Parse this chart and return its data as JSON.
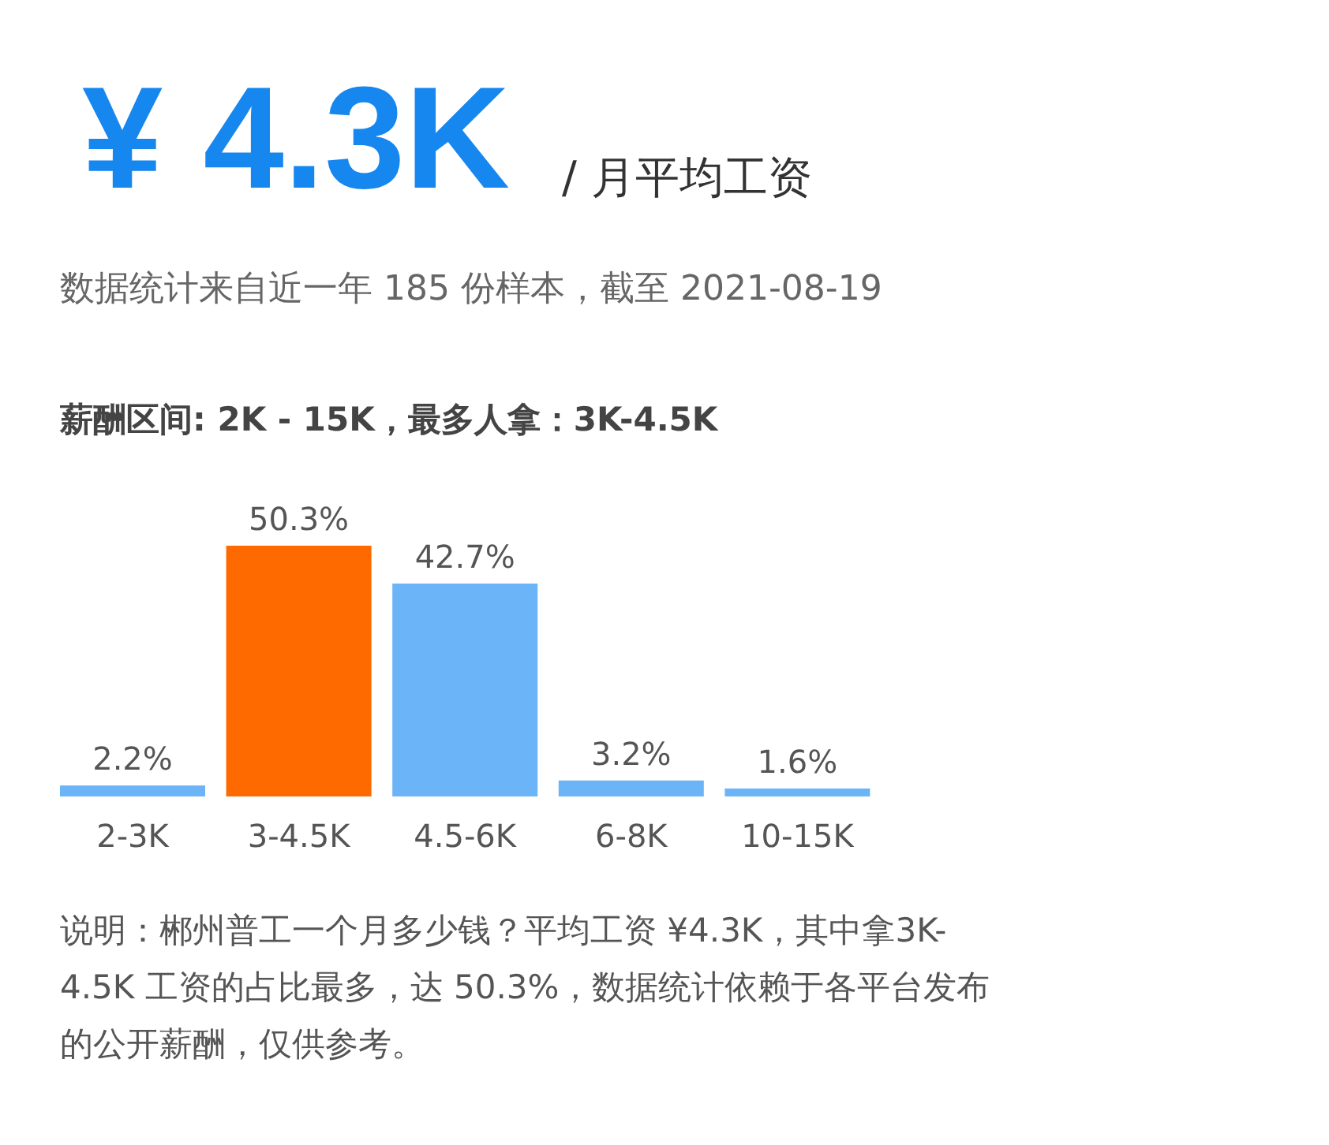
{
  "chart_data": {
    "type": "bar",
    "title": "¥ 4.3K",
    "subtitle": "/ 月平均工资",
    "annotations": [
      "数据统计来自近一年 185 份样本，截至 2021-08-19",
      "薪酬区间: 2K - 15K，最多人拿：3K-4.5K",
      "说明：郴州普工一个月多少钱？平均工资 ¥4.3K，其中拿3K-4.5K 工资的占比最多，达 50.3%，数据统计依赖于各平台发布的公开薪酬，仅供参考。"
    ],
    "categories": [
      "2-3K",
      "3-4.5K",
      "4.5-6K",
      "6-8K",
      "10-15K"
    ],
    "values": [
      2.2,
      50.3,
      42.7,
      3.2,
      1.6
    ],
    "value_labels": [
      "2.2%",
      "50.3%",
      "42.7%",
      "3.2%",
      "1.6%"
    ],
    "colors": [
      "#6ab4f7",
      "#ff6a00",
      "#6ab4f7",
      "#6ab4f7",
      "#6ab4f7"
    ]
  }
}
